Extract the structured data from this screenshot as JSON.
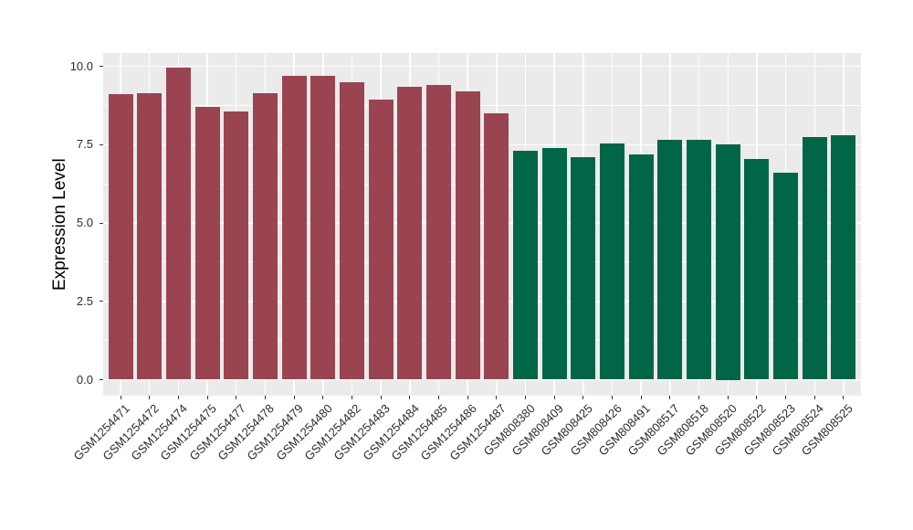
{
  "chart_data": {
    "type": "bar",
    "title": "",
    "xlabel": "",
    "ylabel": "Expression Level",
    "ylim": [
      -0.5,
      10.45
    ],
    "yticks": [
      0.0,
      2.5,
      5.0,
      7.5,
      10.0
    ],
    "ytick_labels": [
      "0.0",
      "2.5",
      "5.0",
      "7.5",
      "10.0"
    ],
    "minor_yticks": [
      1.25,
      3.75,
      6.25,
      8.75
    ],
    "grid": true,
    "legend_position": "none",
    "panel_background": "#EBEBEB",
    "grid_color": "#FFFFFF",
    "categories": [
      "GSM1254471",
      "GSM1254472",
      "GSM1254474",
      "GSM1254475",
      "GSM1254477",
      "GSM1254478",
      "GSM1254479",
      "GSM1254480",
      "GSM1254482",
      "GSM1254483",
      "GSM1254484",
      "GSM1254485",
      "GSM1254486",
      "GSM1254487",
      "GSM808380",
      "GSM808409",
      "GSM808425",
      "GSM808426",
      "GSM808491",
      "GSM808517",
      "GSM808518",
      "GSM808520",
      "GSM808522",
      "GSM808523",
      "GSM808524",
      "GSM808525"
    ],
    "values": [
      9.1,
      9.15,
      9.95,
      8.7,
      8.55,
      9.15,
      9.7,
      9.7,
      9.5,
      8.95,
      9.35,
      9.4,
      9.2,
      8.5,
      7.3,
      7.4,
      7.1,
      7.55,
      7.2,
      7.65,
      7.65,
      7.5,
      7.05,
      6.6,
      7.75,
      7.8
    ],
    "groups": [
      "group1",
      "group1",
      "group1",
      "group1",
      "group1",
      "group1",
      "group1",
      "group1",
      "group1",
      "group1",
      "group1",
      "group1",
      "group1",
      "group1",
      "group2",
      "group2",
      "group2",
      "group2",
      "group2",
      "group2",
      "group2",
      "group2",
      "group2",
      "group2",
      "group2",
      "group2"
    ],
    "group_colors": {
      "group1": "#9A4451",
      "group2": "#016648"
    }
  }
}
